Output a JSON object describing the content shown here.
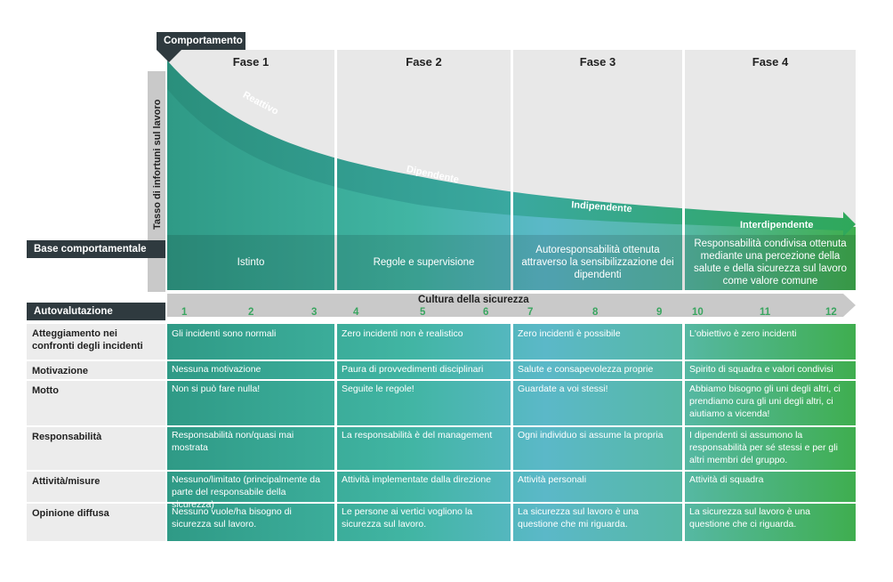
{
  "header": {
    "behavior_label": "Comportamento",
    "y_axis_label": "Tasso di infortuni sul lavoro",
    "basis_label": "Base comportamentale",
    "self_eval_label": "Autovalutazione",
    "culture_label": "Cultura della sicurezza"
  },
  "phases": [
    {
      "title": "Fase 1",
      "curve_label": "Reattivo",
      "basis": "Istinto",
      "scores": [
        "1",
        "2",
        "3"
      ]
    },
    {
      "title": "Fase 2",
      "curve_label": "Dipendente",
      "basis": "Regole e supervisione",
      "scores": [
        "4",
        "5",
        "6"
      ]
    },
    {
      "title": "Fase 3",
      "curve_label": "Indipendente",
      "basis": "Autoresponsabilità ottenuta attraverso la sensibilizzazione dei dipendenti",
      "scores": [
        "7",
        "8",
        "9"
      ]
    },
    {
      "title": "Fase 4",
      "curve_label": "Interdipendente",
      "basis": "Responsabilità condivisa ottenuta mediante una percezione della salute e della sicurezza sul lavoro come valore comune",
      "scores": [
        "10",
        "11",
        "12"
      ]
    }
  ],
  "rows": [
    {
      "label": "Atteggiamento nei confronti degli incidenti",
      "cells": [
        "Gli incidenti sono normali",
        "Zero incidenti non è realistico",
        "Zero incidenti è possibile",
        "L'obiettivo è zero incidenti"
      ]
    },
    {
      "label": "Motivazione",
      "cells": [
        "Nessuna motivazione",
        "Paura di provvedimenti disciplinari",
        "Salute e consapevolezza proprie",
        "Spirito di squadra e valori condivisi"
      ]
    },
    {
      "label": "Motto",
      "cells": [
        "Non si può fare nulla!",
        "Seguite le regole!",
        "Guardate a voi stessi!",
        "Abbiamo bisogno gli uni degli altri, ci prendiamo cura gli uni degli altri, ci aiutiamo a vicenda!"
      ]
    },
    {
      "label": "Responsabilità",
      "cells": [
        "Responsabilità non/quasi mai mostrata",
        "La responsabilità è del management",
        "Ogni individuo si assume la propria",
        "I dipendenti si assumono la responsabilità per sé stessi e per gli altri membri del gruppo."
      ]
    },
    {
      "label": "Attività/misure",
      "cells": [
        "Nessuno/limitato (principalmente da parte del responsabile della sicurezza)",
        "Attività implementate dalla direzione",
        "Attività personali",
        "Attività di squadra"
      ]
    },
    {
      "label": "Opinione diffusa",
      "cells": [
        "Nessuno vuole/ha bisogno di sicurezza sul lavoro.",
        "Le persone ai vertici vogliono la sicurezza sul lavoro.",
        "La sicurezza sul lavoro è una questione che mi riguarda.",
        "La sicurezza sul lavoro è una questione che ci riguarda."
      ]
    }
  ],
  "colors": {
    "dark": "#2f3a3f",
    "teal": "#2f9d8a",
    "green": "#3fae4f",
    "light_blue": "#5fb8c8"
  }
}
